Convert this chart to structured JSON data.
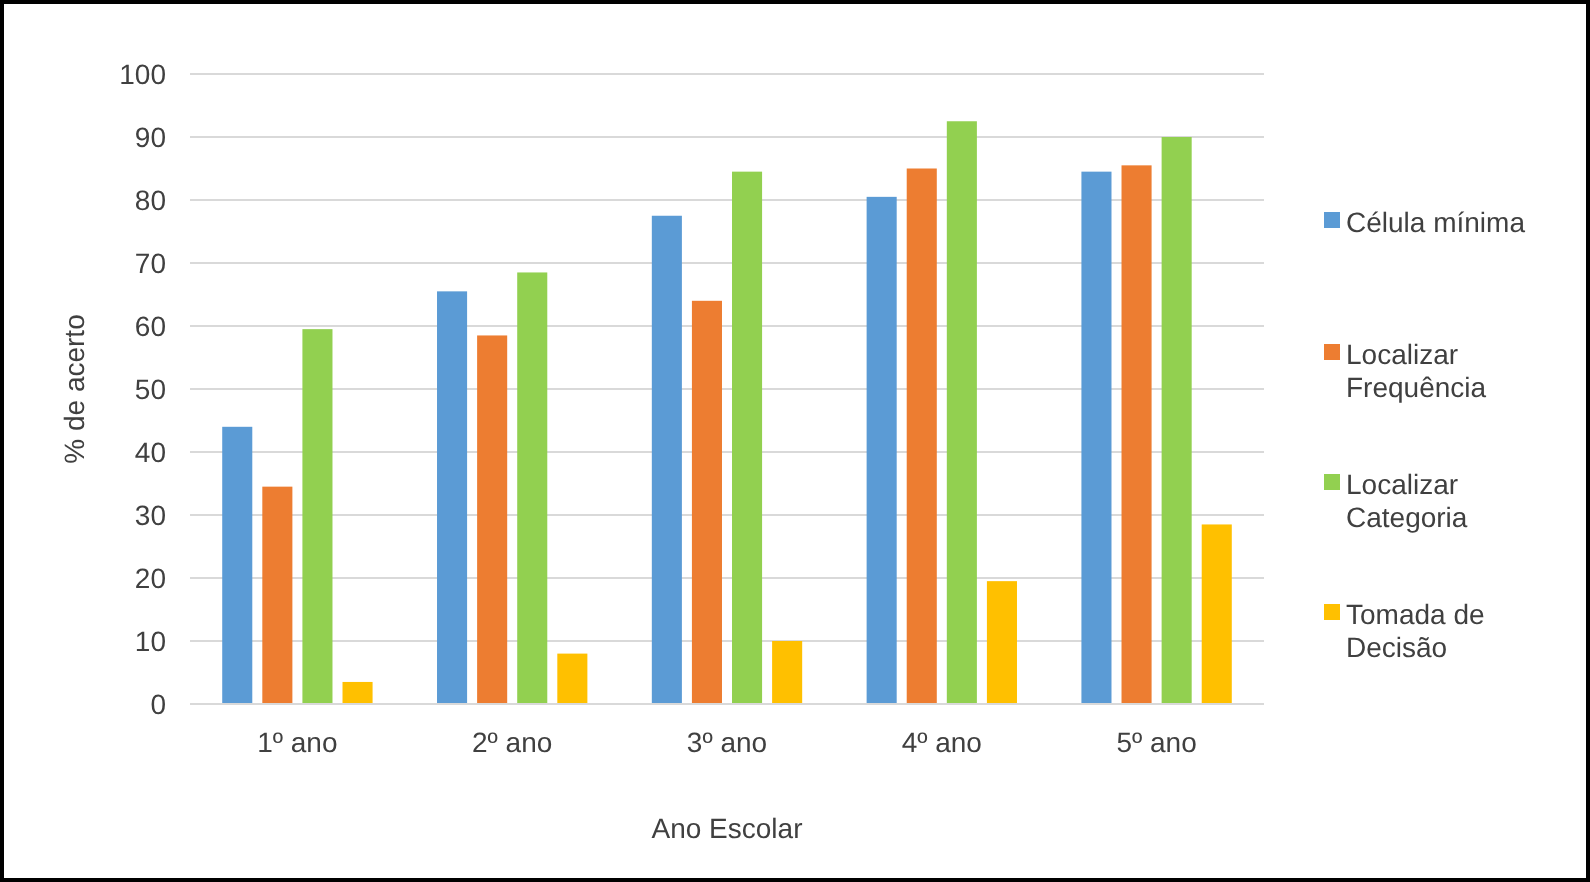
{
  "chart_data": {
    "type": "bar",
    "xlabel": "Ano Escolar",
    "ylabel": "% de acerto",
    "categories": [
      "1º ano",
      "2º ano",
      "3º ano",
      "4º ano",
      "5º ano"
    ],
    "series": [
      {
        "name": "Célula mínima",
        "color": "#5b9bd5",
        "values": [
          44,
          65.5,
          77.5,
          80.5,
          84.5
        ]
      },
      {
        "name": "Localizar Frequência",
        "color": "#ed7d31",
        "values": [
          34.5,
          58.5,
          64,
          85,
          85.5
        ]
      },
      {
        "name": "Localizar Categoria",
        "color": "#92d050",
        "values": [
          59.5,
          68.5,
          84.5,
          92.5,
          90
        ]
      },
      {
        "name": "Tomada de Decisão",
        "color": "#ffc000",
        "values": [
          3.5,
          8,
          10,
          19.5,
          28.5
        ]
      }
    ],
    "ylim": [
      0,
      100
    ],
    "yticks": [
      0,
      10,
      20,
      30,
      40,
      50,
      60,
      70,
      80,
      90,
      100
    ],
    "grid": "y",
    "legend": "right"
  }
}
